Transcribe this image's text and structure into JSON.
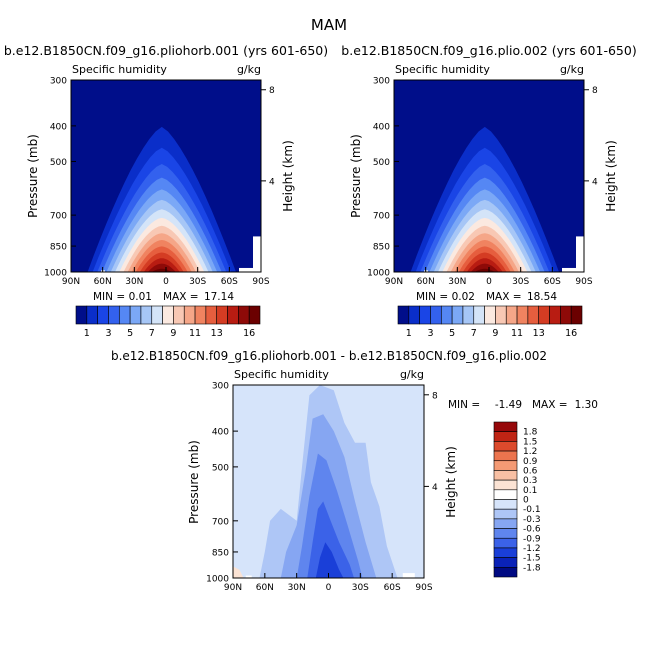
{
  "figure_title": "MAM",
  "chart_data": [
    {
      "type": "contour",
      "title": "b.e12.B1850CN.f09_g16.pliohorb.001 (yrs 601-650)",
      "variable_label": "Specific humidity",
      "units": "g/kg",
      "xlabel": "",
      "ylabel": "Pressure (mb)",
      "y2label": "Height (km)",
      "x_ticks": [
        "90N",
        "60N",
        "30N",
        "0",
        "30S",
        "60S",
        "90S"
      ],
      "x_tick_values": [
        90,
        60,
        30,
        0,
        -30,
        -60,
        -90
      ],
      "y_ticks": [
        "300",
        "400",
        "500",
        "700",
        "850",
        "1000"
      ],
      "y_tick_values": [
        300,
        400,
        500,
        700,
        850,
        1000
      ],
      "y2_ticks": [
        "8",
        "4"
      ],
      "y2_tick_values": [
        8,
        4
      ],
      "min_label": "MIN =",
      "min_value": "0.01",
      "max_label": "MAX =",
      "max_value": "17.14",
      "levels": [
        1,
        2,
        3,
        4,
        5,
        6,
        7,
        8,
        9,
        10,
        11,
        12,
        13,
        14,
        15,
        16
      ],
      "colorbar_labels": [
        "1",
        "3",
        "5",
        "7",
        "9",
        "11",
        "13",
        "16"
      ],
      "colors": [
        "#000e8a",
        "#0a2ec9",
        "#1a45e6",
        "#3361ee",
        "#5587f4",
        "#7ba8f6",
        "#a6c6f6",
        "#d4e4f8",
        "#fbe9e0",
        "#f8c8b4",
        "#f5a688",
        "#f08360",
        "#e65e3e",
        "#d43c23",
        "#b81c12",
        "#8e0a08",
        "#6b0000"
      ],
      "peak_value": 17.14,
      "ylim": [
        300,
        1000
      ]
    },
    {
      "type": "contour",
      "title": "b.e12.B1850CN.f09_g16.plio.002 (yrs 601-650)",
      "variable_label": "Specific humidity",
      "units": "g/kg",
      "xlabel": "",
      "ylabel": "Pressure (mb)",
      "y2label": "Height (km)",
      "x_ticks": [
        "90N",
        "60N",
        "30N",
        "0",
        "30S",
        "60S",
        "90S"
      ],
      "x_tick_values": [
        90,
        60,
        30,
        0,
        -30,
        -60,
        -90
      ],
      "y_ticks": [
        "300",
        "400",
        "500",
        "700",
        "850",
        "1000"
      ],
      "y_tick_values": [
        300,
        400,
        500,
        700,
        850,
        1000
      ],
      "y2_ticks": [
        "8",
        "4"
      ],
      "y2_tick_values": [
        8,
        4
      ],
      "min_label": "MIN =",
      "min_value": "0.02",
      "max_label": "MAX =",
      "max_value": "18.54",
      "levels": [
        1,
        2,
        3,
        4,
        5,
        6,
        7,
        8,
        9,
        10,
        11,
        12,
        13,
        14,
        15,
        16
      ],
      "colorbar_labels": [
        "1",
        "3",
        "5",
        "7",
        "9",
        "11",
        "13",
        "16"
      ],
      "colors": [
        "#000e8a",
        "#0a2ec9",
        "#1a45e6",
        "#3361ee",
        "#5587f4",
        "#7ba8f6",
        "#a6c6f6",
        "#d4e4f8",
        "#fbe9e0",
        "#f8c8b4",
        "#f5a688",
        "#f08360",
        "#e65e3e",
        "#d43c23",
        "#b81c12",
        "#8e0a08",
        "#6b0000"
      ],
      "peak_value": 18.54,
      "ylim": [
        300,
        1000
      ]
    },
    {
      "type": "contour",
      "title": "b.e12.B1850CN.f09_g16.pliohorb.001 - b.e12.B1850CN.f09_g16.plio.002",
      "variable_label": "Specific humidity",
      "units": "g/kg",
      "xlabel": "",
      "ylabel": "Pressure (mb)",
      "y2label": "Height (km)",
      "x_ticks": [
        "90N",
        "60N",
        "30N",
        "0",
        "30S",
        "60S",
        "90S"
      ],
      "x_tick_values": [
        90,
        60,
        30,
        0,
        -30,
        -60,
        -90
      ],
      "y_ticks": [
        "300",
        "400",
        "500",
        "700",
        "850",
        "1000"
      ],
      "y_tick_values": [
        300,
        400,
        500,
        700,
        850,
        1000
      ],
      "y2_ticks": [
        "8",
        "4"
      ],
      "y2_tick_values": [
        8,
        4
      ],
      "min_label": "MIN =",
      "min_value": "-1.49",
      "max_label": "MAX =",
      "max_value": "1.30",
      "levels": [
        -1.8,
        -1.5,
        -1.2,
        -0.9,
        -0.6,
        -0.3,
        -0.1,
        0,
        0.1,
        0.3,
        0.6,
        0.9,
        1.2,
        1.5,
        1.8
      ],
      "colorbar_labels": [
        "1.8",
        "1.5",
        "1.2",
        "0.9",
        "0.6",
        "0.3",
        "0.1",
        "0",
        "-0.1",
        "-0.3",
        "-0.6",
        "-0.9",
        "-1.2",
        "-1.5",
        "-1.8"
      ],
      "colors": [
        "#000a82",
        "#0a22b8",
        "#1a3fd8",
        "#3b62e8",
        "#5f85ee",
        "#86a6f2",
        "#aec6f6",
        "#d6e4fa",
        "#ffffff",
        "#fbe3d4",
        "#f8c0a4",
        "#f49a74",
        "#ec744e",
        "#dc4a2c",
        "#c02414",
        "#96080a"
      ],
      "ylim": [
        300,
        1000
      ]
    }
  ]
}
